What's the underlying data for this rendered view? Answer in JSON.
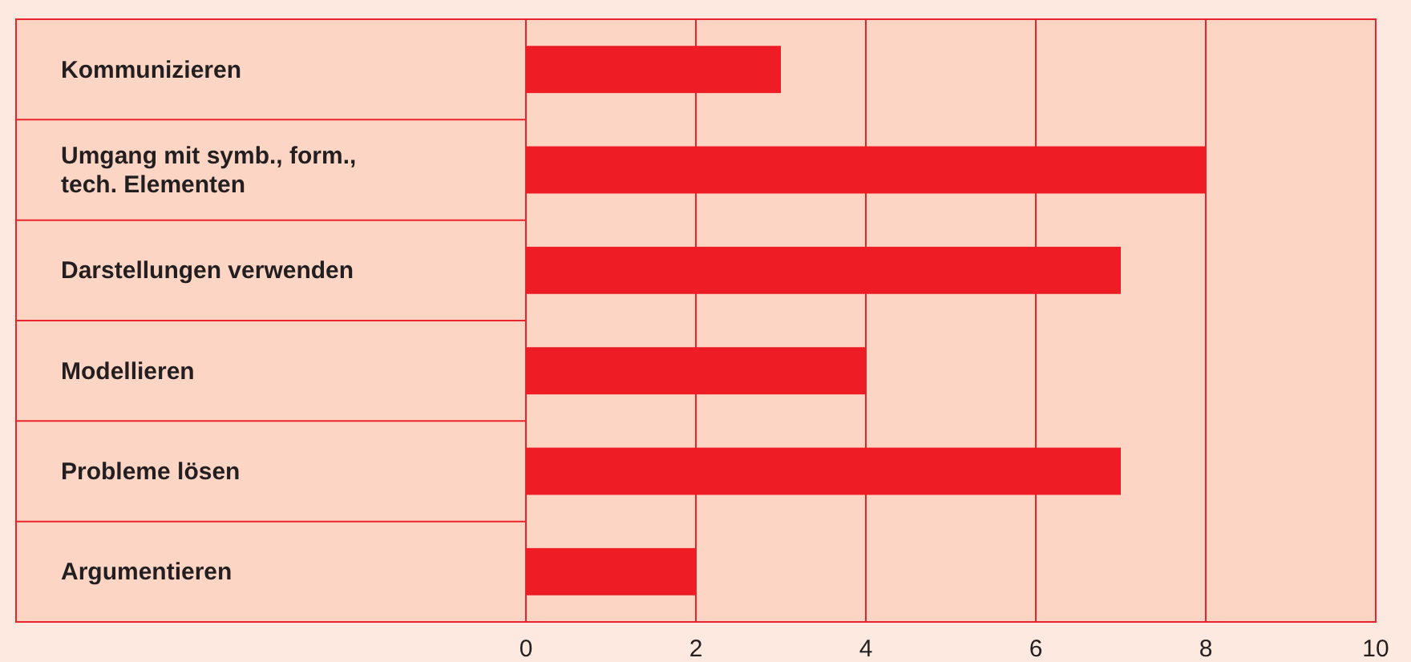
{
  "chart_data": {
    "type": "bar",
    "orientation": "horizontal",
    "categories": [
      "Kommunizieren",
      "Umgang mit symb., form.,\ntech. Elementen",
      "Darstellungen verwenden",
      "Modellieren",
      "Probleme lösen",
      "Argumentieren"
    ],
    "values": [
      3,
      8,
      7,
      4,
      7,
      2
    ],
    "color": "#ee1c25",
    "xlim": [
      0,
      10
    ],
    "xticks": [
      0,
      2,
      4,
      6,
      8,
      10
    ],
    "grid": "x"
  }
}
